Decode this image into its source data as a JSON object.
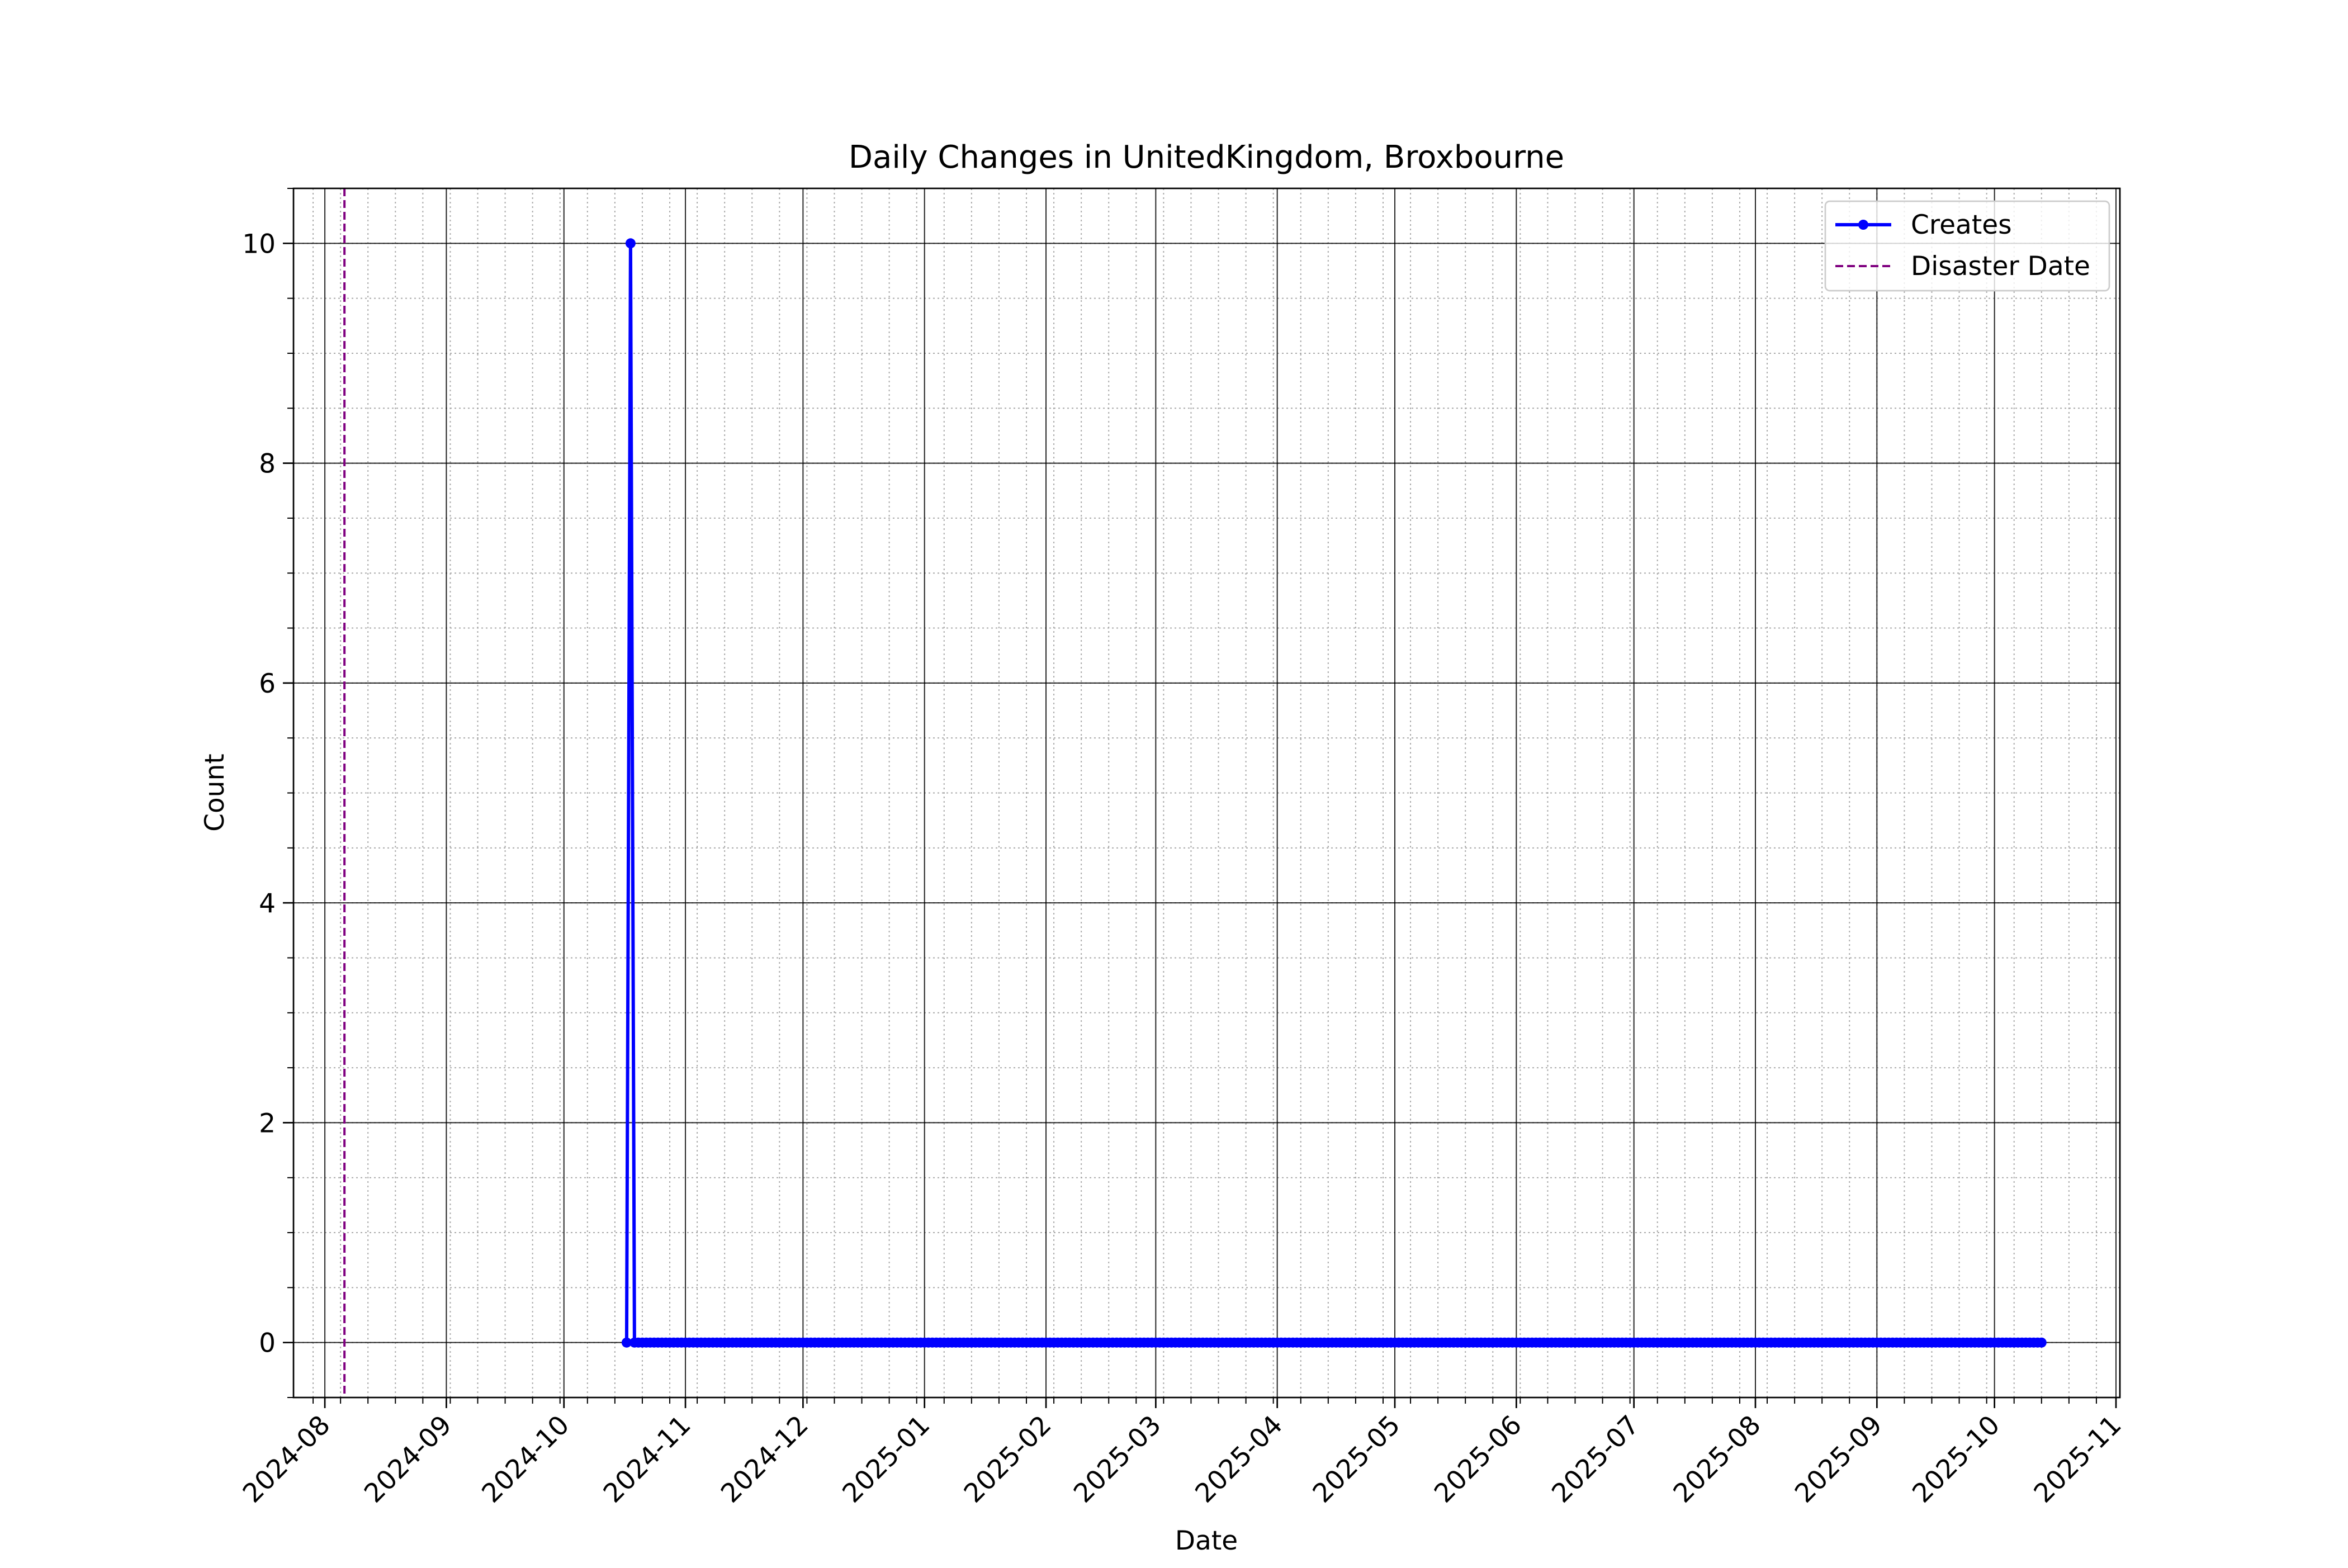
{
  "chart_data": {
    "type": "line",
    "title": "Daily Changes in UnitedKingdom, Broxbourne",
    "xlabel": "Date",
    "ylabel": "Count",
    "x_axis_type": "date",
    "xlim": [
      "2024-07-24",
      "2025-11-02"
    ],
    "ylim": [
      -0.5,
      10.5
    ],
    "x_ticks": [
      "2024-08",
      "2024-09",
      "2024-10",
      "2024-11",
      "2024-12",
      "2025-01",
      "2025-02",
      "2025-03",
      "2025-04",
      "2025-05",
      "2025-06",
      "2025-07",
      "2025-08",
      "2025-09",
      "2025-10",
      "2025-11"
    ],
    "y_ticks": [
      "0",
      "2",
      "4",
      "6",
      "8",
      "10"
    ],
    "y_ticks_values": [
      0,
      2,
      4,
      6,
      8,
      10
    ],
    "y_minor_step": 0.5,
    "x_minor_tick_interval": "weekly",
    "grid": {
      "major": true,
      "minor": true,
      "major_style": "solid",
      "minor_style": "dotted"
    },
    "legend": {
      "position": "upper right"
    },
    "series": [
      {
        "name": "Creates",
        "color": "#0000ff",
        "marker": "circle",
        "style": "solid",
        "x_range": [
          "2024-10-17",
          "2025-10-13"
        ],
        "points": [
          {
            "x": "2024-10-17",
            "y": 0
          },
          {
            "x": "2024-10-18",
            "y": 10
          },
          {
            "x": "2024-10-19",
            "y": 0
          }
        ],
        "default_y": 0
      }
    ],
    "reference_lines": [
      {
        "name": "Disaster Date",
        "x": "2024-08-06",
        "color": "#800080",
        "style": "dashed"
      }
    ]
  }
}
